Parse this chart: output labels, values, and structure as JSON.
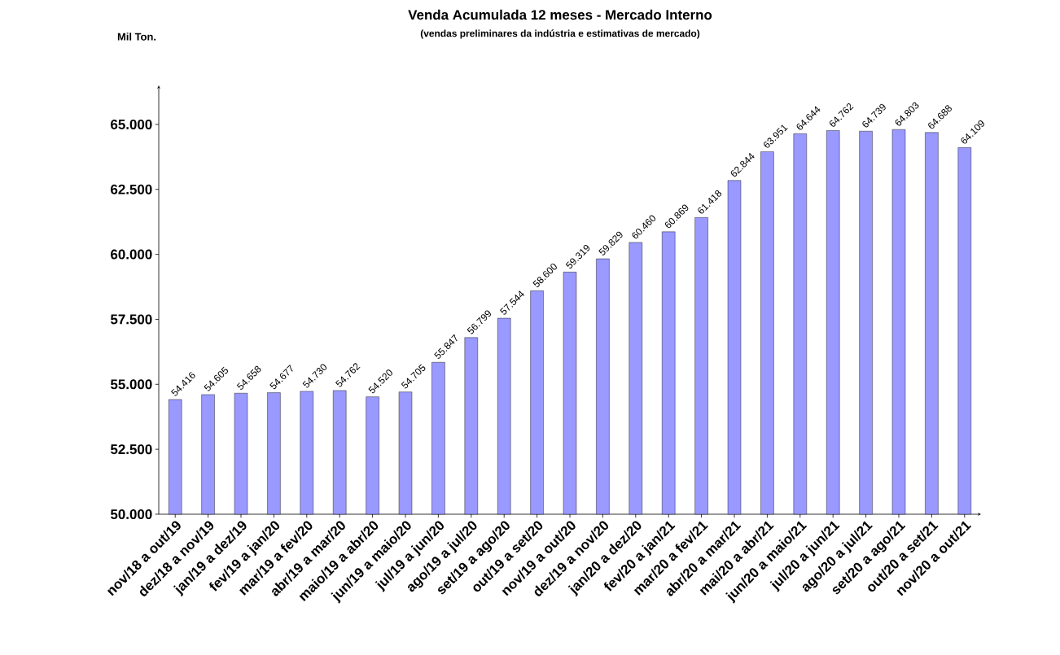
{
  "chart_data": {
    "type": "bar",
    "title": "Venda Acumulada 12 meses -  Mercado Interno",
    "subtitle": "(vendas preliminares da indústria e estimativas de mercado)",
    "ylabel": "Mil Ton.",
    "categories": [
      "nov/18 a out/19",
      "dez/18 a nov/19",
      "jan/19 a dez/19",
      "fev/19 a jan/20",
      "mar/19 a fev/20",
      "abr/19 a mar/20",
      "maio/19 a abr/20",
      "jun/19 a maio/20",
      "jul/19 a jun/20",
      "ago/19 a jul/20",
      "set/19 a ago/20",
      "out/19 a set/20",
      "nov/19 a out/20",
      "dez/19 a nov/20",
      "jan/20 a dez/20",
      "fev/20 a jan/21",
      "mar/20 a fev/21",
      "abr/20 a mar/21",
      "mai/20 a abr/21",
      "jun/20 a maio/21",
      "jul/20 a jun/21",
      "ago/20 a jul/21",
      "set/20 a ago/21",
      "out/20 a set/21",
      "nov/20 a out/21"
    ],
    "values": [
      54416,
      54605,
      54658,
      54677,
      54730,
      54762,
      54520,
      54705,
      55847,
      56799,
      57544,
      58600,
      59319,
      59829,
      60460,
      60869,
      61418,
      62844,
      63951,
      64644,
      64762,
      64739,
      64803,
      64688,
      64109
    ],
    "value_labels": [
      "54.416",
      "54.605",
      "54.658",
      "54.677",
      "54.730",
      "54.762",
      "54.520",
      "54.705",
      "55.847",
      "56.799",
      "57.544",
      "58.600",
      "59.319",
      "59.829",
      "60.460",
      "60.869",
      "61.418",
      "62.844",
      "63.951",
      "64.644",
      "64.762",
      "64.739",
      "64.803",
      "64.688",
      "64.109"
    ],
    "color": "#9999ff",
    "ylim": [
      50000,
      66500
    ],
    "yticks": [
      {
        "value": 50000,
        "label": "50.000"
      },
      {
        "value": 52500,
        "label": "52.500"
      },
      {
        "value": 55000,
        "label": "55.000"
      },
      {
        "value": 57500,
        "label": "57.500"
      },
      {
        "value": 60000,
        "label": "60.000"
      },
      {
        "value": 62500,
        "label": "62.500"
      },
      {
        "value": 65000,
        "label": "65.000"
      }
    ]
  }
}
